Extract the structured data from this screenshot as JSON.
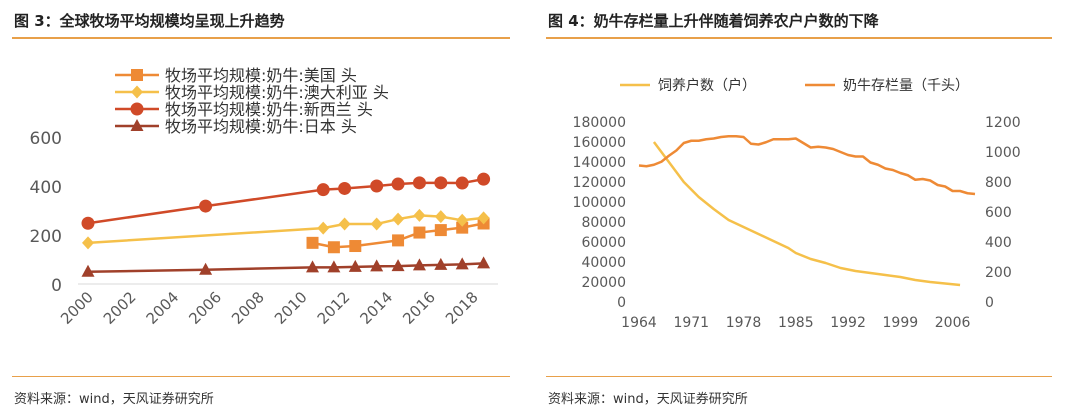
{
  "colors": {
    "rule": "#e8a04a",
    "orange": "#ee8a35",
    "yellow": "#f5c04a",
    "red": "#d04a28",
    "dark": "#a0402a"
  },
  "left": {
    "title": "图 3：全球牧场平均规模均呈现上升趋势",
    "source": "资料来源：wind，天风证券研究所",
    "chart_data": {
      "type": "line",
      "title": "",
      "xlabel": "",
      "ylabel": "",
      "xlim": [
        2000,
        2019
      ],
      "ylim": [
        0,
        600
      ],
      "x_ticks": [
        "2000",
        "2002",
        "2004",
        "2006",
        "2008",
        "2010",
        "2012",
        "2014",
        "2016",
        "2018"
      ],
      "y_ticks": [
        "0",
        "200",
        "400",
        "600"
      ],
      "series": [
        {
          "name": "牧场平均规模:奶牛:美国 头",
          "color": "#ee8a35",
          "marker": "square",
          "x": [
            2010.5,
            2011.5,
            2012.5,
            2014.5,
            2015.5,
            2016.5,
            2017.5,
            2018.5
          ],
          "y": [
            168,
            150,
            155,
            178,
            210,
            220,
            230,
            247
          ]
        },
        {
          "name": "牧场平均规模:奶牛:澳大利亚 头",
          "color": "#f5c04a",
          "marker": "diamond",
          "x": [
            2000,
            2011,
            2012,
            2013.5,
            2014.5,
            2015.5,
            2016.5,
            2017.5,
            2018.5
          ],
          "y": [
            168,
            228,
            245,
            245,
            265,
            280,
            275,
            260,
            270
          ]
        },
        {
          "name": "牧场平均规模:奶牛:新西兰 头",
          "color": "#d04a28",
          "marker": "circle",
          "x": [
            2000,
            2005.5,
            2011,
            2012,
            2013.5,
            2014.5,
            2015.5,
            2016.5,
            2017.5,
            2018.5
          ],
          "y": [
            248,
            318,
            385,
            390,
            400,
            408,
            413,
            413,
            412,
            428
          ]
        },
        {
          "name": "牧场平均规模:奶牛:日本 头",
          "color": "#a0402a",
          "marker": "triangle",
          "x": [
            2000,
            2005.5,
            2010.5,
            2011.5,
            2012.5,
            2013.5,
            2014.5,
            2015.5,
            2016.5,
            2017.5,
            2018.5
          ],
          "y": [
            50,
            58,
            68,
            68,
            70,
            72,
            73,
            76,
            78,
            80,
            84
          ]
        }
      ]
    }
  },
  "right": {
    "title": "图 4：奶牛存栏量上升伴随着饲养农户户数的下降",
    "source": "资料来源：wind，天风证券研究所",
    "chart_data": {
      "type": "line",
      "title": "",
      "xlabel": "",
      "ylabel": "",
      "xlim": [
        1964,
        2010
      ],
      "ylim_left": [
        0,
        180000
      ],
      "ylim_right": [
        0,
        1200
      ],
      "x_ticks": [
        "1964",
        "1971",
        "1978",
        "1985",
        "1992",
        "1999",
        "2006"
      ],
      "y_left_ticks": [
        "0",
        "20000",
        "40000",
        "60000",
        "80000",
        "100000",
        "120000",
        "140000",
        "160000",
        "180000"
      ],
      "y_right_ticks": [
        "0",
        "200",
        "400",
        "600",
        "800",
        "1000",
        "1200"
      ],
      "series": [
        {
          "name": "饲养户数（户）",
          "color": "#f5c04a",
          "axis": "left",
          "x": [
            1966,
            1968,
            1970,
            1972,
            1974,
            1976,
            1978,
            1980,
            1982,
            1984,
            1985,
            1987,
            1989,
            1991,
            1993,
            1995,
            1997,
            1999,
            2001,
            2003,
            2005,
            2007
          ],
          "y": [
            160000,
            140000,
            120000,
            105000,
            93000,
            82000,
            75000,
            68000,
            61000,
            54000,
            49000,
            43000,
            39000,
            34000,
            31000,
            29000,
            27000,
            25000,
            22000,
            20000,
            18500,
            17000
          ]
        },
        {
          "name": "奶牛存栏量（千头）",
          "color": "#ee8a35",
          "axis": "right",
          "x": [
            1964,
            1965,
            1966,
            1967,
            1968,
            1969,
            1970,
            1971,
            1972,
            1973,
            1974,
            1975,
            1976,
            1977,
            1978,
            1979,
            1980,
            1981,
            1982,
            1983,
            1984,
            1985,
            1986,
            1987,
            1988,
            1989,
            1990,
            1991,
            1992,
            1993,
            1994,
            1995,
            1996,
            1997,
            1998,
            1999,
            2000,
            2001,
            2002,
            2003,
            2004,
            2005,
            2006,
            2007,
            2008,
            2009
          ],
          "y": [
            910,
            905,
            915,
            935,
            975,
            1010,
            1060,
            1075,
            1075,
            1085,
            1090,
            1100,
            1105,
            1105,
            1100,
            1055,
            1050,
            1065,
            1085,
            1085,
            1085,
            1090,
            1060,
            1030,
            1035,
            1030,
            1020,
            1000,
            980,
            970,
            970,
            930,
            915,
            890,
            880,
            860,
            845,
            815,
            820,
            810,
            780,
            770,
            740,
            740,
            725,
            720
          ]
        }
      ]
    }
  }
}
